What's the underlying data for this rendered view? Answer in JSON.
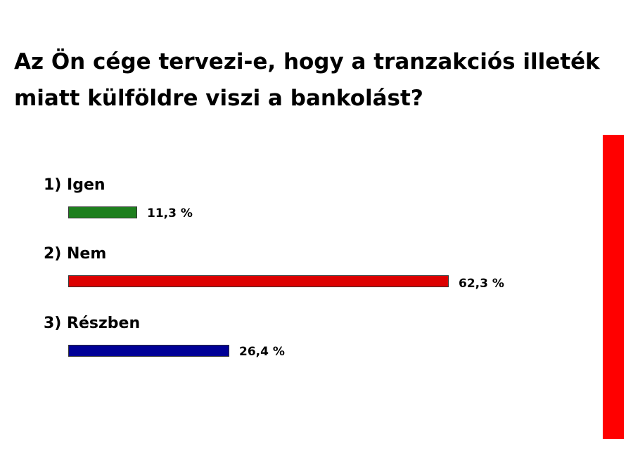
{
  "chart_data": {
    "type": "bar",
    "orientation": "horizontal",
    "title_lines": [
      "Az Ön cége tervezi-e, hogy a tranzakciós illeték",
      "miatt külföldre viszi a bankolást?"
    ],
    "categories": [
      "1) Igen",
      "2) Nem",
      "3) Részben"
    ],
    "values": [
      11.3,
      62.3,
      26.4
    ],
    "value_labels": [
      "11,3 %",
      "62,3 %",
      "26,4 %"
    ],
    "unit": "%",
    "colors": [
      "#1e7f1e",
      "#dc0000",
      "#000096"
    ],
    "xlim": [
      0,
      62.3
    ],
    "grid": false,
    "axes_visible": false,
    "accent_color": "#ff0000"
  }
}
